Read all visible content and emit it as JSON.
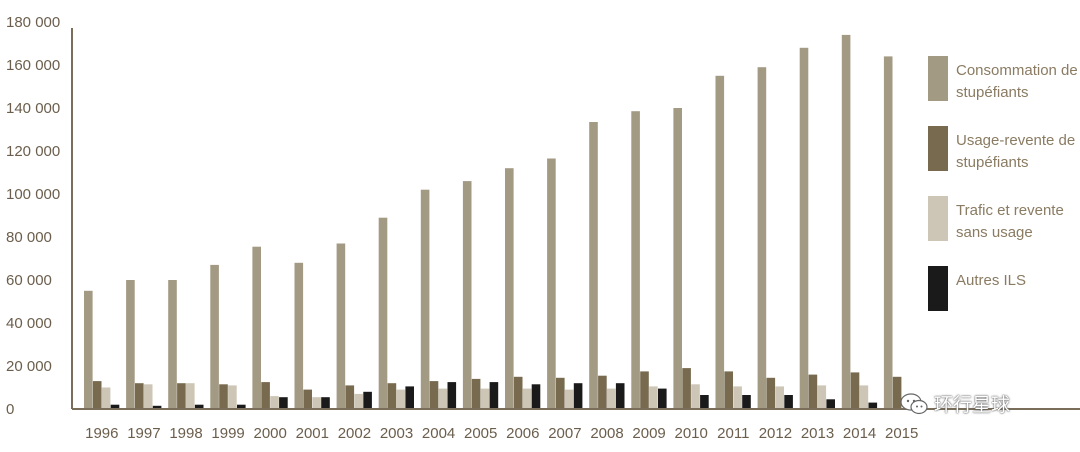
{
  "chart_data": {
    "type": "bar",
    "title": "",
    "xlabel": "",
    "ylabel": "",
    "ylim": [
      0,
      180000
    ],
    "yticks": [
      "180 000",
      "160 000",
      "140 000",
      "120 000",
      "100 000",
      "80 000",
      "60 000",
      "40 000",
      "20 000",
      "0"
    ],
    "yticks_values": [
      180000,
      160000,
      140000,
      120000,
      100000,
      80000,
      60000,
      40000,
      20000,
      0
    ],
    "categories": [
      "1996",
      "1997",
      "1998",
      "1999",
      "2000",
      "2001",
      "2002",
      "2003",
      "2004",
      "2005",
      "2006",
      "2007",
      "2008",
      "2009",
      "2010",
      "2011",
      "2012",
      "2013",
      "2014",
      "2015"
    ],
    "series": [
      {
        "name": "Consommation de stupéfiants",
        "color": "#a39a84",
        "values": [
          55000,
          60000,
          60000,
          67000,
          75500,
          68000,
          77000,
          89000,
          102000,
          106000,
          112000,
          116500,
          133500,
          138500,
          140000,
          155000,
          159000,
          168000,
          174000,
          164000
        ]
      },
      {
        "name": "Usage-revente de stupéfiants",
        "color": "#786a4f",
        "values": [
          13000,
          12000,
          12000,
          11500,
          12500,
          9000,
          11000,
          12000,
          13000,
          14000,
          15000,
          14500,
          15500,
          17500,
          19000,
          17500,
          14500,
          16000,
          17000,
          15000
        ]
      },
      {
        "name": "Trafic et revente sans usage",
        "color": "#cdc6b6",
        "values": [
          10000,
          11500,
          12000,
          11000,
          6000,
          5500,
          7000,
          9000,
          9500,
          9500,
          9500,
          9000,
          9500,
          10500,
          11500,
          10500,
          10500,
          11000,
          11000,
          0
        ]
      },
      {
        "name": "Autres ILS",
        "color": "#1a1a1a",
        "values": [
          2000,
          1500,
          2000,
          2000,
          5500,
          5500,
          8000,
          10500,
          12500,
          12500,
          11500,
          12000,
          12000,
          9500,
          6500,
          6500,
          6500,
          4500,
          3000,
          0
        ]
      }
    ],
    "legend_position": "right",
    "grid": false
  },
  "legend": [
    {
      "label": "Consommation de stupéfiants",
      "color": "#a39a84"
    },
    {
      "label": "Usage-revente de stupéfiants",
      "color": "#786a4f"
    },
    {
      "label": "Trafic et revente sans usage",
      "color": "#cdc6b6"
    },
    {
      "label": "Autres ILS",
      "color": "#1a1a1a"
    }
  ],
  "watermark": {
    "text": "环行星球",
    "icon": "wechat-icon"
  }
}
